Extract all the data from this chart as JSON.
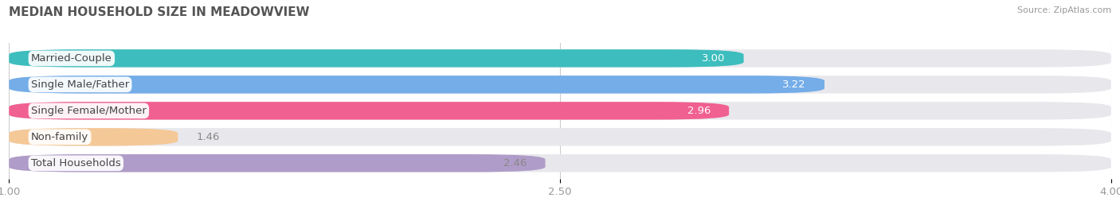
{
  "title": "MEDIAN HOUSEHOLD SIZE IN MEADOWVIEW",
  "source": "Source: ZipAtlas.com",
  "categories": [
    "Married-Couple",
    "Single Male/Father",
    "Single Female/Mother",
    "Non-family",
    "Total Households"
  ],
  "values": [
    3.0,
    3.22,
    2.96,
    1.46,
    2.46
  ],
  "bar_colors": [
    "#3DBDBD",
    "#74ADE8",
    "#F06090",
    "#F5C897",
    "#B09CC8"
  ],
  "value_colors": [
    "white",
    "white",
    "white",
    "#888888",
    "#888888"
  ],
  "bar_bg_color": "#E8E8EC",
  "xlim_start": 1.0,
  "xlim_end": 4.0,
  "xticks": [
    1.0,
    2.5,
    4.0
  ],
  "xtick_labels": [
    "1.00",
    "2.50",
    "4.00"
  ],
  "label_fontsize": 9.5,
  "value_fontsize": 9.5,
  "title_fontsize": 11,
  "figsize": [
    14.06,
    2.68
  ],
  "dpi": 100
}
